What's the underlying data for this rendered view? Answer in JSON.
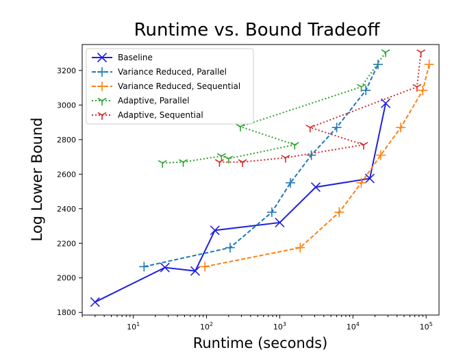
{
  "chart_data": {
    "type": "line",
    "title": "Runtime vs. Bound Tradeoff",
    "xlabel": "Runtime (seconds)",
    "ylabel": "Log Lower Bound",
    "x_scale": "log",
    "xlim": [
      2,
      150000
    ],
    "ylim": [
      1785,
      3350
    ],
    "x_ticks": [
      {
        "value": 10,
        "base": "10",
        "exp": "1"
      },
      {
        "value": 100,
        "base": "10",
        "exp": "2"
      },
      {
        "value": 1000,
        "base": "10",
        "exp": "3"
      },
      {
        "value": 10000,
        "base": "10",
        "exp": "4"
      },
      {
        "value": 100000,
        "base": "10",
        "exp": "5"
      }
    ],
    "y_ticks": [
      1800,
      2000,
      2200,
      2400,
      2600,
      2800,
      3000,
      3200
    ],
    "grid": false,
    "legend_position": "upper-left",
    "series": [
      {
        "name": "Baseline",
        "color": "#1f1fde",
        "line_style": "solid",
        "marker": "x",
        "points": [
          [
            3,
            1860
          ],
          [
            27,
            2060
          ],
          [
            70,
            2040
          ],
          [
            130,
            2275
          ],
          [
            1000,
            2320
          ],
          [
            3100,
            2525
          ],
          [
            17000,
            2575
          ],
          [
            28000,
            3010
          ]
        ]
      },
      {
        "name": "Variance Reduced, Parallel",
        "color": "#1f77b4",
        "line_style": "dashed",
        "marker": "plus",
        "points": [
          [
            14,
            2065
          ],
          [
            210,
            2175
          ],
          [
            780,
            2380
          ],
          [
            1400,
            2550
          ],
          [
            2700,
            2710
          ],
          [
            6000,
            2870
          ],
          [
            15000,
            3085
          ],
          [
            22000,
            3235
          ]
        ]
      },
      {
        "name": "Variance Reduced, Sequential",
        "color": "#ff7f0e",
        "line_style": "dashed",
        "marker": "plus",
        "points": [
          [
            95,
            2065
          ],
          [
            1900,
            2175
          ],
          [
            6500,
            2380
          ],
          [
            13000,
            2550
          ],
          [
            24000,
            2710
          ],
          [
            45000,
            2870
          ],
          [
            90000,
            3085
          ],
          [
            110000,
            3235
          ]
        ]
      },
      {
        "name": "Adaptive, Parallel",
        "color": "#2ca02c",
        "line_style": "dotted",
        "marker": "tri_down",
        "points": [
          [
            25,
            2665
          ],
          [
            48,
            2670
          ],
          [
            160,
            2705
          ],
          [
            200,
            2690
          ],
          [
            1600,
            2770
          ],
          [
            290,
            2875
          ],
          [
            13000,
            3105
          ],
          [
            28000,
            3305
          ]
        ]
      },
      {
        "name": "Adaptive, Sequential",
        "color": "#d62728",
        "line_style": "dotted",
        "marker": "tri_down",
        "points": [
          [
            150,
            2670
          ],
          [
            310,
            2670
          ],
          [
            1200,
            2695
          ],
          [
            14000,
            2770
          ],
          [
            2600,
            2870
          ],
          [
            75000,
            3105
          ],
          [
            85000,
            3305
          ]
        ]
      }
    ]
  }
}
